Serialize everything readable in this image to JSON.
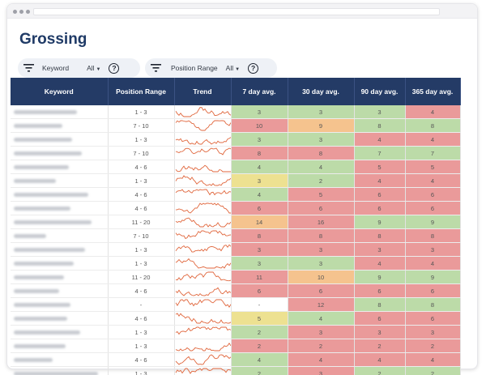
{
  "page": {
    "title": "Grossing"
  },
  "filters": [
    {
      "label": "Keyword",
      "value": "All",
      "help": "?"
    },
    {
      "label": "Position Range",
      "value": "All",
      "help": "?"
    }
  ],
  "table": {
    "columns": [
      "Keyword",
      "Position Range",
      "Trend",
      "7 day avg.",
      "30 day avg.",
      "90 day avg.",
      "365 day avg."
    ],
    "rows": [
      {
        "range": "1 - 3",
        "d7": "3",
        "d30": "3",
        "d90": "3",
        "d365": "4",
        "c7": "green",
        "c30": "green",
        "c90": "green",
        "c365": "red"
      },
      {
        "range": "7 - 10",
        "d7": "10",
        "d30": "9",
        "d90": "8",
        "d365": "8",
        "c7": "red",
        "c30": "orange",
        "c90": "green",
        "c365": "green"
      },
      {
        "range": "1 - 3",
        "d7": "3",
        "d30": "3",
        "d90": "4",
        "d365": "4",
        "c7": "green",
        "c30": "green",
        "c90": "red",
        "c365": "red"
      },
      {
        "range": "7 - 10",
        "d7": "8",
        "d30": "8",
        "d90": "7",
        "d365": "7",
        "c7": "red",
        "c30": "red",
        "c90": "green",
        "c365": "green"
      },
      {
        "range": "4 - 6",
        "d7": "4",
        "d30": "4",
        "d90": "5",
        "d365": "5",
        "c7": "green",
        "c30": "green",
        "c90": "red",
        "c365": "red"
      },
      {
        "range": "1 - 3",
        "d7": "3",
        "d30": "2",
        "d90": "4",
        "d365": "4",
        "c7": "yellow",
        "c30": "green",
        "c90": "red",
        "c365": "red"
      },
      {
        "range": "4 - 6",
        "d7": "4",
        "d30": "5",
        "d90": "6",
        "d365": "6",
        "c7": "green",
        "c30": "red",
        "c90": "red",
        "c365": "red"
      },
      {
        "range": "4 - 6",
        "d7": "6",
        "d30": "6",
        "d90": "6",
        "d365": "6",
        "c7": "red",
        "c30": "red",
        "c90": "red",
        "c365": "red"
      },
      {
        "range": "11 - 20",
        "d7": "14",
        "d30": "16",
        "d90": "9",
        "d365": "9",
        "c7": "orange",
        "c30": "red",
        "c90": "green",
        "c365": "green"
      },
      {
        "range": "7 - 10",
        "d7": "8",
        "d30": "8",
        "d90": "8",
        "d365": "8",
        "c7": "red",
        "c30": "red",
        "c90": "red",
        "c365": "red"
      },
      {
        "range": "1 - 3",
        "d7": "3",
        "d30": "3",
        "d90": "3",
        "d365": "3",
        "c7": "red",
        "c30": "red",
        "c90": "red",
        "c365": "red"
      },
      {
        "range": "1 - 3",
        "d7": "3",
        "d30": "3",
        "d90": "4",
        "d365": "4",
        "c7": "green",
        "c30": "green",
        "c90": "red",
        "c365": "red"
      },
      {
        "range": "11 - 20",
        "d7": "11",
        "d30": "10",
        "d90": "9",
        "d365": "9",
        "c7": "red",
        "c30": "orange",
        "c90": "green",
        "c365": "green"
      },
      {
        "range": "4 - 6",
        "d7": "6",
        "d30": "6",
        "d90": "6",
        "d365": "6",
        "c7": "red",
        "c30": "red",
        "c90": "red",
        "c365": "red"
      },
      {
        "range": "-",
        "d7": "-",
        "d30": "12",
        "d90": "8",
        "d365": "8",
        "c7": "white",
        "c30": "red",
        "c90": "green",
        "c365": "green"
      },
      {
        "range": "4 - 6",
        "d7": "5",
        "d30": "4",
        "d90": "6",
        "d365": "6",
        "c7": "yellow",
        "c30": "green",
        "c90": "red",
        "c365": "red"
      },
      {
        "range": "1 - 3",
        "d7": "2",
        "d30": "3",
        "d90": "3",
        "d365": "3",
        "c7": "green",
        "c30": "red",
        "c90": "red",
        "c365": "red"
      },
      {
        "range": "1 - 3",
        "d7": "2",
        "d30": "2",
        "d90": "2",
        "d365": "2",
        "c7": "red",
        "c30": "red",
        "c90": "red",
        "c365": "red"
      },
      {
        "range": "4 - 6",
        "d7": "4",
        "d30": "4",
        "d90": "4",
        "d365": "4",
        "c7": "green",
        "c30": "red",
        "c90": "red",
        "c365": "red"
      },
      {
        "range": "1 - 3",
        "d7": "2",
        "d30": "3",
        "d90": "2",
        "d365": "2",
        "c7": "green",
        "c30": "red",
        "c90": "green",
        "c365": "green"
      }
    ]
  },
  "colors": {
    "header_bg": "#243b66",
    "title": "#1f3a66",
    "red": "#ea9a9a",
    "green": "#bcdba8",
    "orange": "#f5c38e",
    "yellow": "#ede191",
    "sparkline": "#e0663c"
  },
  "icons": [
    "filter-icon",
    "help-icon",
    "caret-down-icon"
  ]
}
